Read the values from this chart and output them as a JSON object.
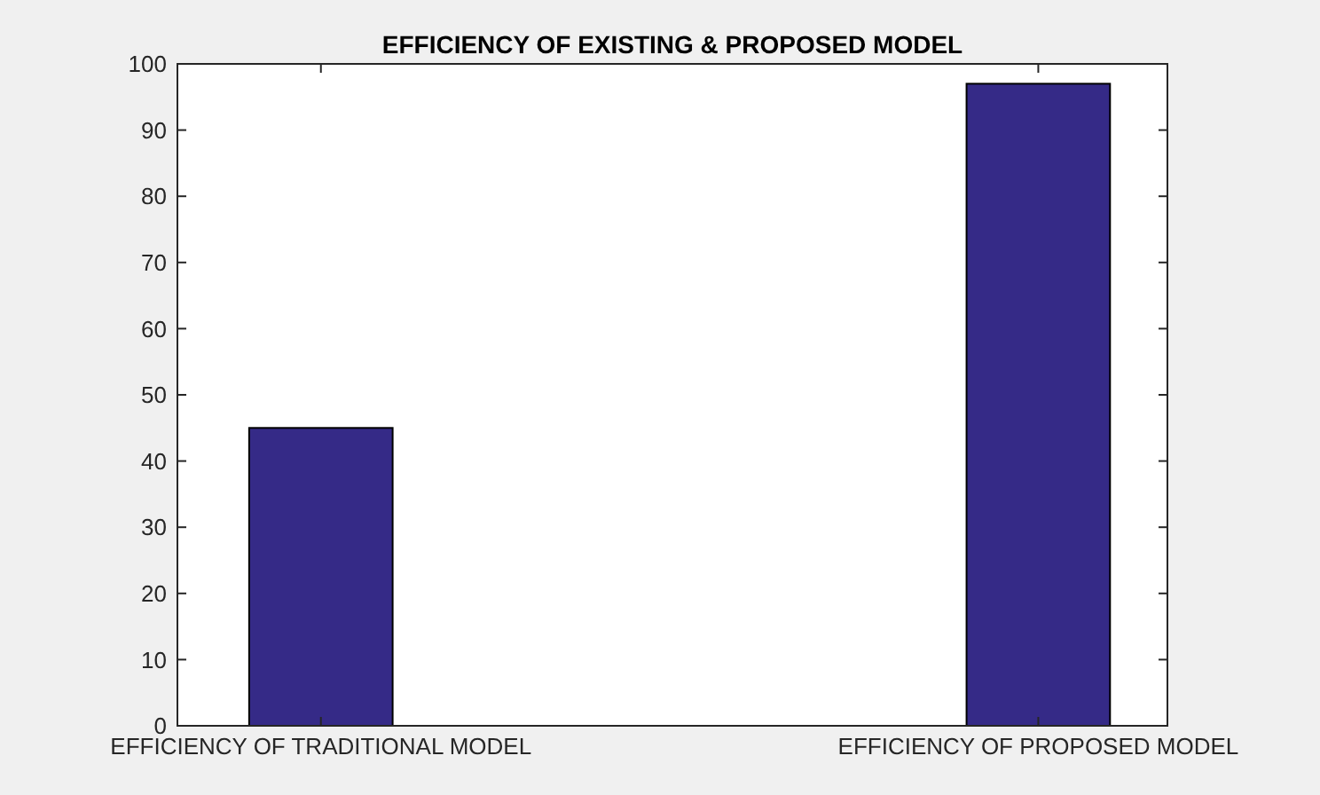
{
  "chart_data": {
    "type": "bar",
    "title": "EFFICIENCY OF EXISTING & PROPOSED MODEL",
    "categories": [
      "EFFICIENCY OF TRADITIONAL MODEL",
      "EFFICIENCY OF PROPOSED MODEL"
    ],
    "values": [
      45,
      97
    ],
    "color": "#352a87",
    "ylim": [
      0,
      100
    ],
    "yticks": [
      0,
      10,
      20,
      30,
      40,
      50,
      60,
      70,
      80,
      90,
      100
    ],
    "grid": false
  }
}
